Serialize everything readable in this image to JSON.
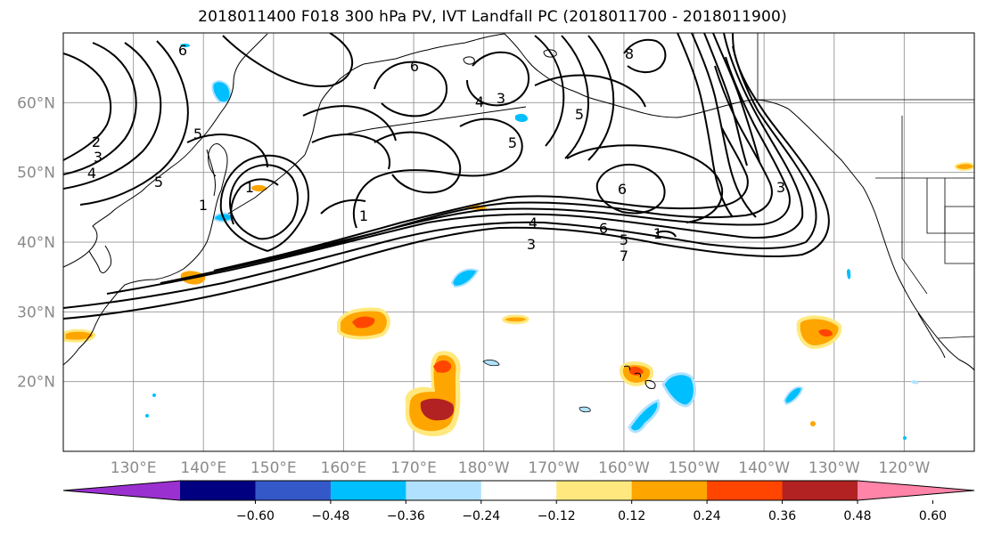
{
  "title": "2018011400 F018 300 hPa PV, IVT Landfall PC (2018011700 - 2018011900)",
  "map": {
    "lon_range": [
      120,
      250
    ],
    "lat_range": [
      10,
      70
    ],
    "lat_labels": [
      "20°N",
      "30°N",
      "40°N",
      "50°N",
      "60°N"
    ],
    "lon_labels": [
      "130°E",
      "140°E",
      "150°E",
      "160°E",
      "170°E",
      "180°W",
      "170°W",
      "160°W",
      "150°W",
      "140°W",
      "130°W",
      "120°W"
    ],
    "gridlines": true,
    "contour_labels": [
      "6",
      "6",
      "2",
      "3",
      "4",
      "5",
      "5",
      "1",
      "1",
      "4",
      "6",
      "5",
      "1",
      "7",
      "3",
      "3",
      "6",
      "4",
      "5",
      "5",
      "8",
      "3",
      "1"
    ]
  },
  "colorbar": {
    "tick_labels": [
      "−0.60",
      "−0.48",
      "−0.36",
      "−0.24",
      "−0.12",
      "0.12",
      "0.24",
      "0.36",
      "0.48",
      "0.60"
    ],
    "colors": [
      "#9b30d0",
      "#000080",
      "#3558c9",
      "#00bfff",
      "#b0e2ff",
      "#ffffff",
      "#ffe97f",
      "#ffa500",
      "#ff4500",
      "#b22222",
      "#ff84a8"
    ]
  },
  "colors": {
    "land_outline": "#000000",
    "grid": "#a0a0a0",
    "contour": "#000000"
  }
}
